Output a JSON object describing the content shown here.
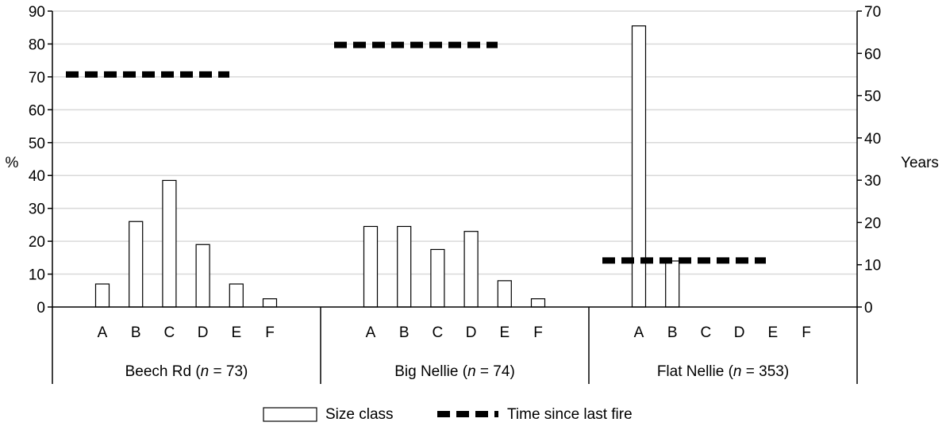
{
  "chart_data": {
    "type": "bar",
    "ylabel": "%",
    "y2label": "Years",
    "ylim": [
      0,
      90
    ],
    "y2lim": [
      0,
      70
    ],
    "yticks": [
      0,
      10,
      20,
      30,
      40,
      50,
      60,
      70,
      80,
      90
    ],
    "y2ticks": [
      0,
      10,
      20,
      30,
      40,
      50,
      60,
      70
    ],
    "grid": true,
    "legend_position": "bottom",
    "size_classes": [
      "A",
      "B",
      "C",
      "D",
      "E",
      "F"
    ],
    "groups": [
      {
        "label": "Beech Rd (",
        "n_text": "n",
        "rest": " = 73)",
        "values": [
          7,
          26,
          38.5,
          19,
          7,
          2.5
        ],
        "years": 55
      },
      {
        "label": "Big Nellie (",
        "n_text": "n",
        "rest": " = 74)",
        "values": [
          24.5,
          24.5,
          17.5,
          23,
          8,
          2.5
        ],
        "years": 62
      },
      {
        "label": "Flat Nellie (",
        "n_text": "n",
        "rest": " = 353)",
        "values": [
          85.5,
          14,
          0,
          0,
          0,
          0
        ],
        "years": 11
      }
    ],
    "series": [
      {
        "name": "Size class",
        "kind": "bar"
      },
      {
        "name": "Time since last fire",
        "kind": "dashed-line",
        "axis": "right"
      }
    ]
  }
}
